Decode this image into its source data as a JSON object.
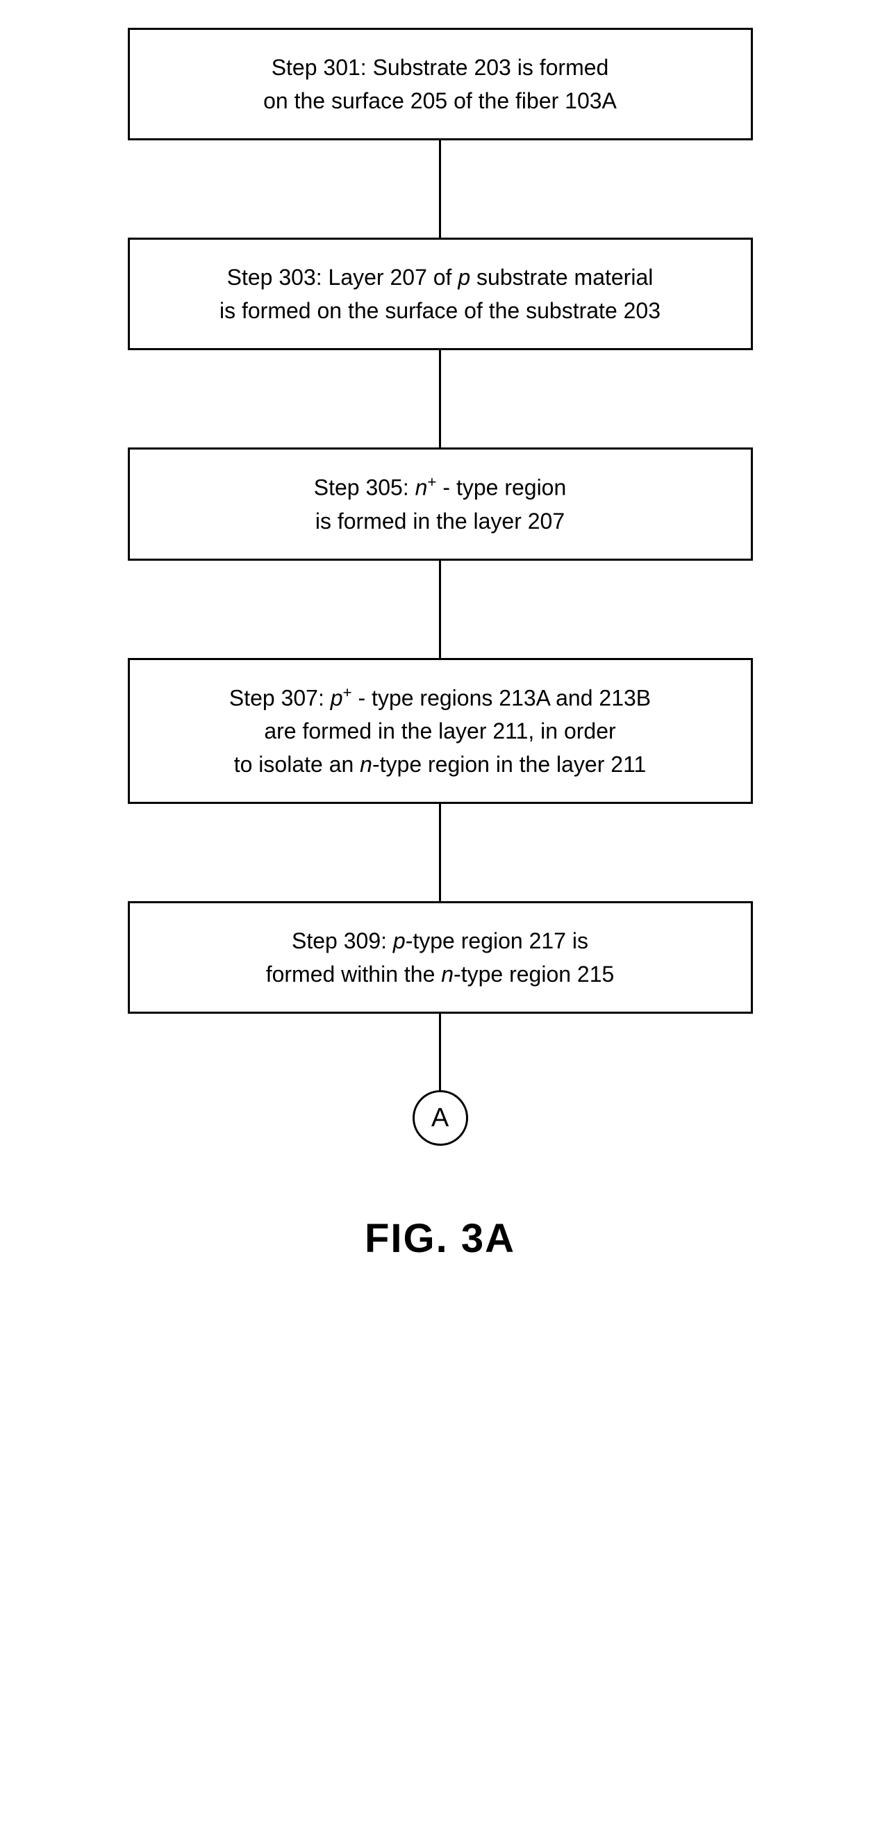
{
  "flowchart": {
    "steps": [
      {
        "label": "Step 301:",
        "line1_plain": "  Substrate 203 is formed",
        "line2": "on the surface 205 of the fiber 103A"
      },
      {
        "label": "Step 303:",
        "line1_pre": "  Layer 207 of ",
        "line1_italic": "p",
        "line1_post": " substrate material",
        "line2": "is formed on the surface of the substrate 203"
      },
      {
        "label": "Step 305:",
        "line1_pre": "  ",
        "line1_italic": "n",
        "line1_sup": "+",
        "line1_post": " - type region",
        "line2": "is formed in the layer 207"
      },
      {
        "label": "Step 307:",
        "line1_pre": "  ",
        "line1_italic": "p",
        "line1_sup": "+",
        "line1_post": " - type regions 213A and 213B",
        "line2": "are formed in the layer 211, in order",
        "line3_pre": "to isolate an ",
        "line3_italic": "n",
        "line3_post": "-type region in the layer 211"
      },
      {
        "label": "Step 309:",
        "line1_pre": "  ",
        "line1_italic": "p",
        "line1_post": "-type region 217 is",
        "line2_pre": "formed within the ",
        "line2_italic": "n",
        "line2_post": "-type region 215"
      }
    ],
    "connector_label": "A",
    "figure_label": "FIG.  3A",
    "colors": {
      "border": "#000000",
      "background": "#ffffff",
      "text": "#000000"
    },
    "box_border_width": 3,
    "connector_width": 3,
    "font_size_box": 32,
    "font_size_circle": 38,
    "font_size_figure": 58
  }
}
